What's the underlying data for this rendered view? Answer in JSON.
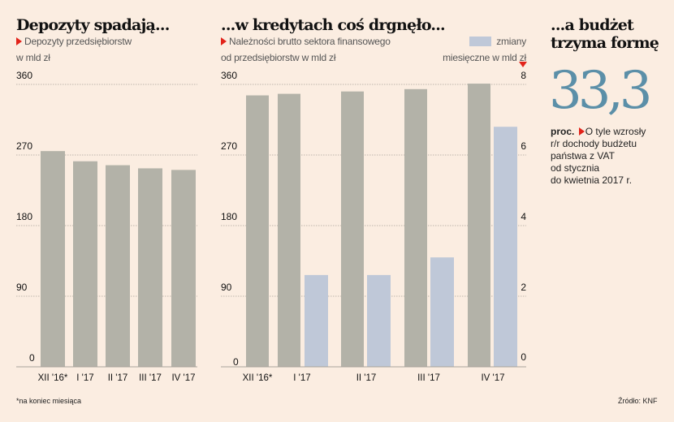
{
  "colors": {
    "gray_bar": "#b3b2a8",
    "blue_bar": "#bfc8d8",
    "accent": "#e2231a",
    "big_number": "#5b8fa8",
    "background": "#fbede1"
  },
  "left": {
    "title": "Depozyty spadają...",
    "subtitle_line1": "Depozyty przedsiębiorstw",
    "subtitle_line2": "w mld zł"
  },
  "middle": {
    "title": "...w kredytach coś drgnęło...",
    "subtitle_line1": "Należności brutto sektora finansowego",
    "subtitle_line2": "od przedsiębiorstw w mld zł",
    "legend_line1": "zmiany",
    "legend_line2": "miesięczne w mld zł"
  },
  "right": {
    "title_line1": "...a budżet",
    "title_line2": "trzyma formę",
    "big_number": "33,3",
    "unit": "proc.",
    "desc_line1": "O tyle wzrosły",
    "desc_line2": "r/r dochody budżetu",
    "desc_line3": "państwa z VAT",
    "desc_line4": "od stycznia",
    "desc_line5": "do kwietnia 2017 r."
  },
  "footnote": "*na koniec miesiąca",
  "source": "Źródło: KNF",
  "chart_data": [
    {
      "type": "bar",
      "title": "Depozyty spadają...",
      "ylabel": "Depozyty przedsiębiorstw w mld zł",
      "categories": [
        "XII '16*",
        "I '17",
        "II '17",
        "III '17",
        "IV '17"
      ],
      "values": [
        275,
        262,
        257,
        253,
        251
      ],
      "ylim": [
        0,
        360
      ],
      "yticks": [
        "0",
        "90",
        "180",
        "270",
        "360"
      ],
      "grid": true
    },
    {
      "type": "bar",
      "title": "...w kredytach coś drgnęło...",
      "ylabel": "Należności brutto sektora finansowego od przedsiębiorstw w mld zł",
      "y2label": "zmiany miesięczne w mld zł",
      "categories": [
        "XII '16*",
        "I '17",
        "II '17",
        "III '17",
        "IV '17"
      ],
      "series": [
        {
          "name": "Należności brutto",
          "axis": "left",
          "values": [
            346,
            348,
            351,
            354,
            361
          ]
        },
        {
          "name": "zmiany miesięczne w mld zł",
          "axis": "right",
          "values": [
            null,
            2.6,
            2.6,
            3.1,
            6.8
          ]
        }
      ],
      "ylim": [
        0,
        360
      ],
      "y2lim": [
        0,
        8
      ],
      "yticks": [
        "0",
        "90",
        "180",
        "270",
        "360"
      ],
      "y2ticks": [
        "0",
        "2",
        "4",
        "6",
        "8"
      ],
      "grid": true
    }
  ]
}
